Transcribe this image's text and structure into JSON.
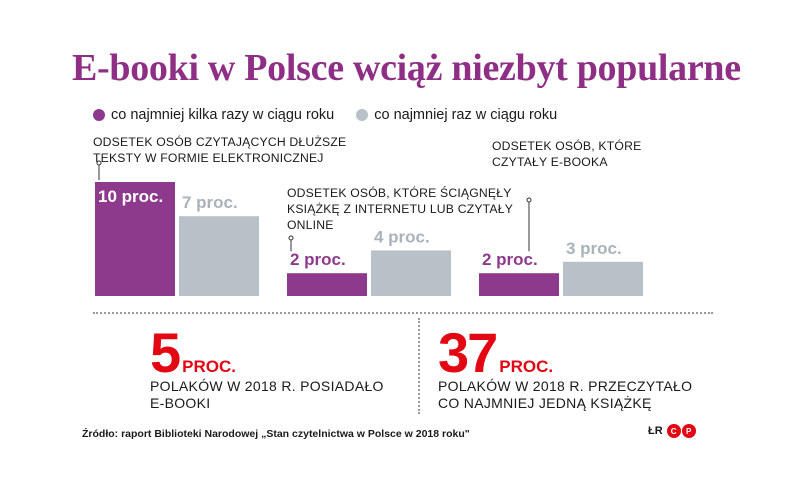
{
  "title": "E-booki w Polsce wciąż niezbyt popularne",
  "legend": [
    {
      "label": "co najmniej kilka razy w ciągu roku",
      "color": "#8e3a8c"
    },
    {
      "label": "co najmniej raz w ciągu roku",
      "color": "#b8c1c7"
    }
  ],
  "chart_data": {
    "type": "bar",
    "title": "E-booki w Polsce wciąż niezbyt popularne",
    "unit": "proc.",
    "categories": [
      "Odsetek osób czytających dłuższe teksty w formie elektronicznej",
      "Odsetek osób, które ściągnęły książkę z internetu lub czytały online",
      "Odsetek osób, które czytały e-booka"
    ],
    "series": [
      {
        "name": "co najmniej kilka razy w ciągu roku",
        "values": [
          10,
          2,
          2
        ],
        "labels": [
          "10 proc.",
          "2 proc.",
          "2 proc."
        ],
        "color": "#8e3a8c"
      },
      {
        "name": "co najmniej raz w ciągu roku",
        "values": [
          7,
          4,
          3
        ],
        "labels": [
          "7 proc.",
          "4 proc.",
          "3 proc."
        ],
        "color": "#b8c1c7"
      }
    ],
    "xlabel": "",
    "ylabel": "",
    "ylim": [
      0,
      10
    ]
  },
  "captions": [
    [
      "Odsetek osób czytających dłuższe",
      "teksty w formie elektronicznej"
    ],
    [
      "Odsetek osób, które ściągnęły",
      "książkę z internetu lub czytały",
      "online"
    ],
    [
      "Odsetek osób, które",
      "czytały e-booka"
    ]
  ],
  "stats": [
    {
      "value": "5",
      "unit": "PROC.",
      "desc_lines": [
        "Polaków w 2018 r. posiadało",
        "e-booki"
      ]
    },
    {
      "value": "37",
      "unit": "PROC.",
      "desc_lines": [
        "Polaków w 2018 r. przeczytało",
        "co najmniej jedną książkę"
      ]
    }
  ],
  "source": "Źródło: raport Biblioteki Narodowej „Stan czytelnictwa w Polsce w 2018 roku\"",
  "logo": {
    "initials": "ŁR",
    "letters": [
      "C",
      "P"
    ]
  }
}
